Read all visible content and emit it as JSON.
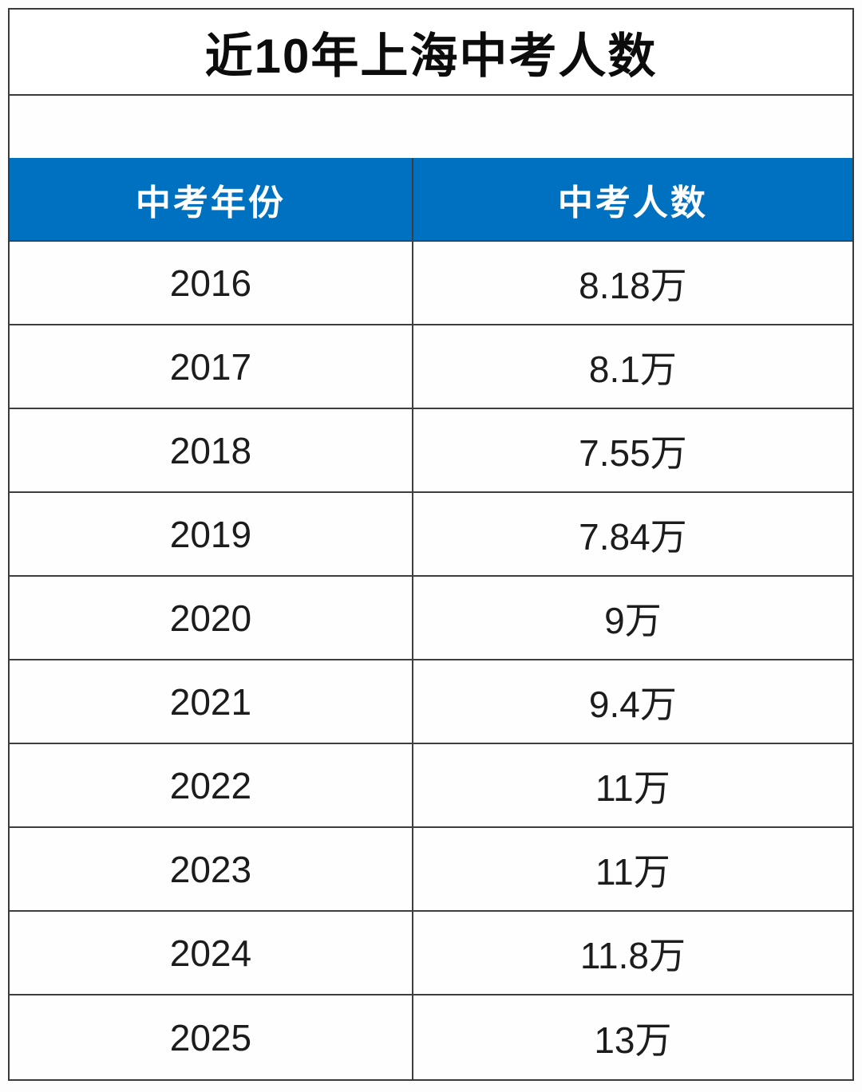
{
  "title": "近10年上海中考人数",
  "table": {
    "header_year": "中考年份",
    "header_count": "中考人数",
    "rows": [
      {
        "year": "2016",
        "count": "8.18万"
      },
      {
        "year": "2017",
        "count": "8.1万"
      },
      {
        "year": "2018",
        "count": "7.55万"
      },
      {
        "year": "2019",
        "count": "7.84万"
      },
      {
        "year": "2020",
        "count": "9万"
      },
      {
        "year": "2021",
        "count": "9.4万"
      },
      {
        "year": "2022",
        "count": "11万"
      },
      {
        "year": "2023",
        "count": "11万"
      },
      {
        "year": "2024",
        "count": "11.8万"
      },
      {
        "year": "2025",
        "count": "13万"
      }
    ]
  },
  "colors": {
    "header_bg": "#0070c0",
    "header_text": "#ffffff",
    "grid_border": "#3d3d3d",
    "body_text": "#1c1c1c",
    "title_text": "#0c0c0c"
  },
  "chart_data": {
    "type": "table",
    "title": "近10年上海中考人数",
    "columns": [
      "中考年份",
      "中考人数"
    ],
    "categories": [
      "2016",
      "2017",
      "2018",
      "2019",
      "2020",
      "2021",
      "2022",
      "2023",
      "2024",
      "2025"
    ],
    "values": [
      8.18,
      8.1,
      7.55,
      7.84,
      9,
      9.4,
      11,
      11,
      11.8,
      13
    ],
    "unit": "万",
    "value_labels": [
      "8.18万",
      "8.1万",
      "7.55万",
      "7.84万",
      "9万",
      "9.4万",
      "11万",
      "11万",
      "11.8万",
      "13万"
    ]
  }
}
